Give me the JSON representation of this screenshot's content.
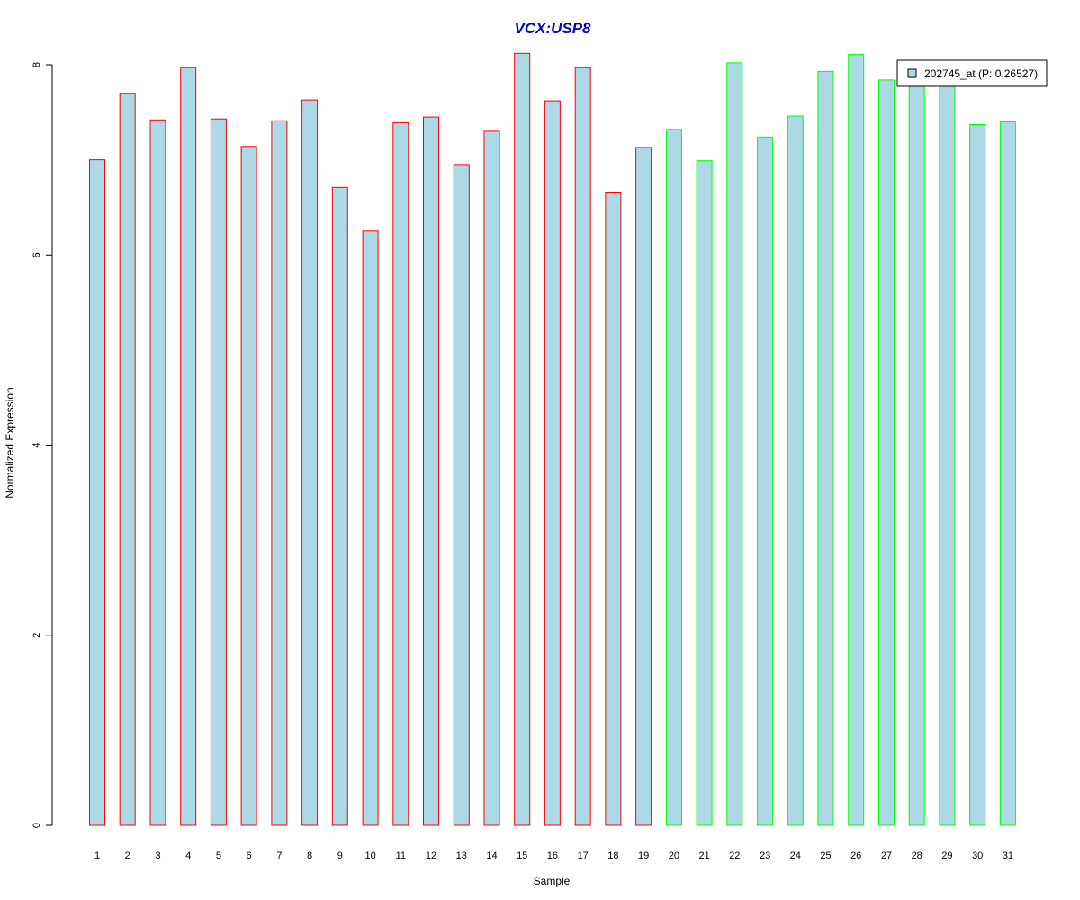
{
  "chart_data": {
    "type": "bar",
    "title": "VCX:USP8",
    "xlabel": "Sample",
    "ylabel": "Normalized Expression",
    "categories": [
      "1",
      "2",
      "3",
      "4",
      "5",
      "6",
      "7",
      "8",
      "9",
      "10",
      "11",
      "12",
      "13",
      "14",
      "15",
      "16",
      "17",
      "18",
      "19",
      "20",
      "21",
      "22",
      "23",
      "24",
      "25",
      "26",
      "27",
      "28",
      "29",
      "30",
      "31"
    ],
    "series": [
      {
        "name": "202745_at (P: 0.26527)",
        "values": [
          7.0,
          7.7,
          7.42,
          7.97,
          7.43,
          7.14,
          7.41,
          7.63,
          6.71,
          6.25,
          7.39,
          7.45,
          6.95,
          7.3,
          8.12,
          7.62,
          7.97,
          6.66,
          7.13,
          7.32,
          6.99,
          8.02,
          7.24,
          7.46,
          7.93,
          8.11,
          7.84,
          7.8,
          7.8,
          7.37,
          7.4
        ]
      }
    ],
    "bar_fill": "#add8e6",
    "group_border_colors": [
      "#ff0000",
      "#ff0000",
      "#ff0000",
      "#ff0000",
      "#ff0000",
      "#ff0000",
      "#ff0000",
      "#ff0000",
      "#ff0000",
      "#ff0000",
      "#ff0000",
      "#ff0000",
      "#ff0000",
      "#ff0000",
      "#ff0000",
      "#ff0000",
      "#ff0000",
      "#ff0000",
      "#ff0000",
      "#00ff00",
      "#00ff00",
      "#00ff00",
      "#00ff00",
      "#00ff00",
      "#00ff00",
      "#00ff00",
      "#00ff00",
      "#00ff00",
      "#00ff00",
      "#00ff00",
      "#00ff00"
    ],
    "title_color": "#0000cc",
    "yticks": [
      "0",
      "2",
      "4",
      "6",
      "8"
    ],
    "ylim": [
      0,
      8.0
    ],
    "grid": false,
    "legend_position": "top-right"
  }
}
